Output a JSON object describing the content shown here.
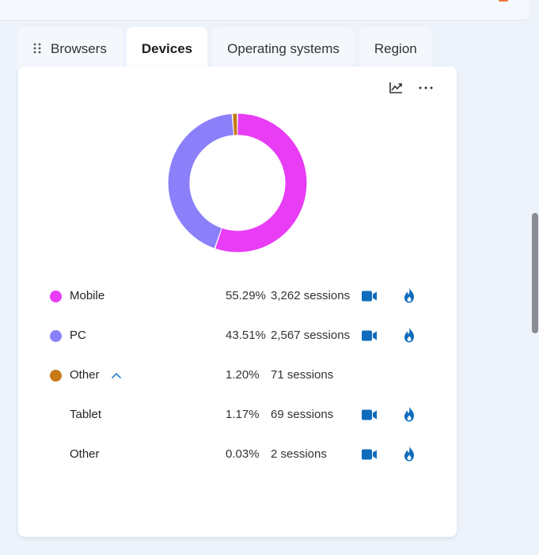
{
  "tabs": [
    {
      "label": "Browsers",
      "active": false
    },
    {
      "label": "Devices",
      "active": true
    },
    {
      "label": "Operating systems",
      "active": false
    },
    {
      "label": "Region",
      "active": false
    }
  ],
  "card": {
    "actions": [
      "trend-chart-icon",
      "more-options-icon"
    ],
    "more_label": "···"
  },
  "chart_data": {
    "type": "pie",
    "variant": "donut",
    "slices": [
      {
        "label": "Mobile",
        "value": 55.29,
        "color": "#e83cf5"
      },
      {
        "label": "PC",
        "value": 43.51,
        "color": "#8b80f9"
      },
      {
        "label": "Other",
        "value": 1.2,
        "color": "#c87a16"
      }
    ]
  },
  "legend": [
    {
      "name": "Mobile",
      "pct": "55.29%",
      "sessions": "3,262 sessions",
      "color": "#e83cf5",
      "has_dot": true,
      "has_actions": true
    },
    {
      "name": "PC",
      "pct": "43.51%",
      "sessions": "2,567 sessions",
      "color": "#8b80f9",
      "has_dot": true,
      "has_actions": true
    },
    {
      "name": "Other",
      "pct": "1.20%",
      "sessions": "71 sessions",
      "color": "#c87a16",
      "has_dot": true,
      "has_actions": false,
      "expanded": true
    },
    {
      "name": "Tablet",
      "pct": "1.17%",
      "sessions": "69 sessions",
      "has_dot": false,
      "has_actions": true
    },
    {
      "name": "Other",
      "pct": "0.03%",
      "sessions": "2 sessions",
      "has_dot": false,
      "has_actions": true
    }
  ],
  "colors": {
    "accent": "#0f6cbd",
    "recording": "#0f6cbd",
    "heatmap": "#0f6cbd"
  }
}
